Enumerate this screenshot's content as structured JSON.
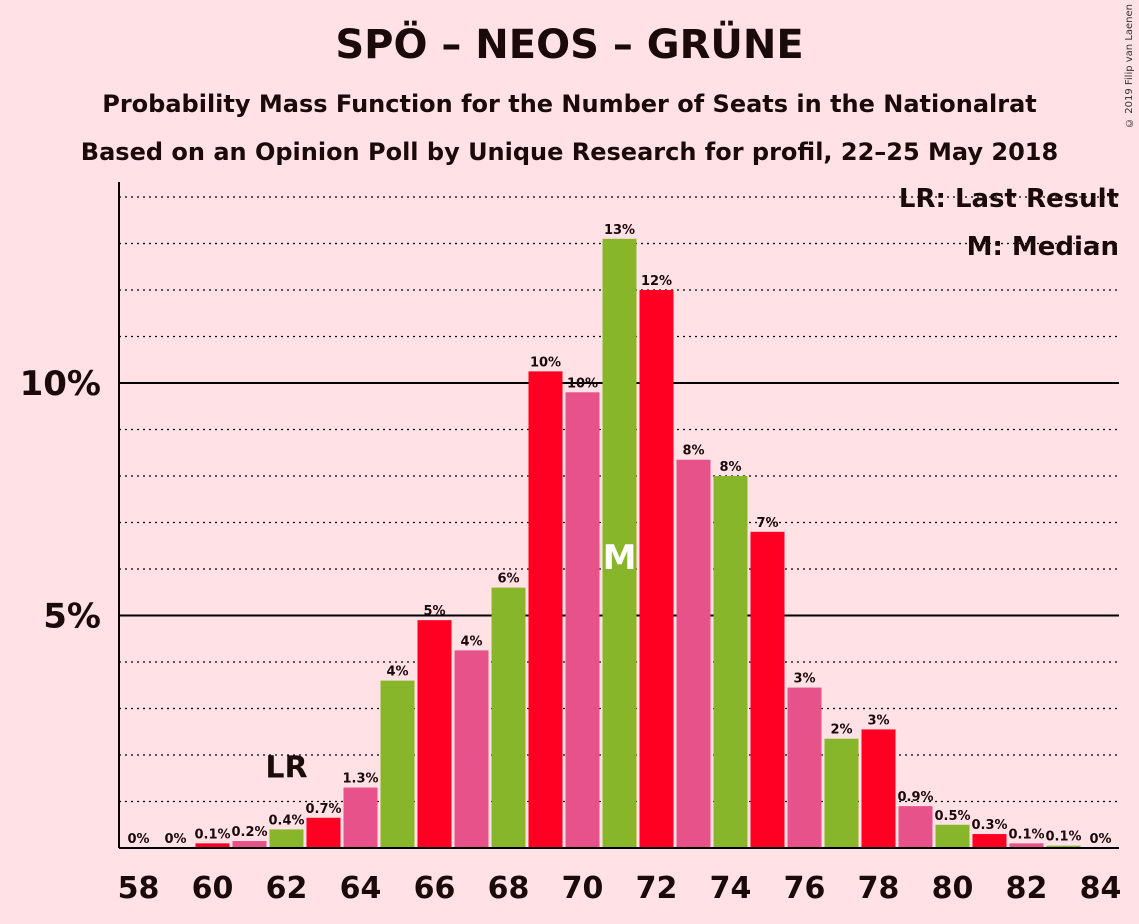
{
  "title": "SPÖ – NEOS – GRÜNE",
  "subtitle1": "Probability Mass Function for the Number of Seats in the Nationalrat",
  "subtitle2": "Based on an Opinion Poll by Unique Research for profil, 22–25 May 2018",
  "copyright": "© 2019 Filip van Laenen",
  "legend": {
    "last_result": "LR: Last Result",
    "median": "M: Median"
  },
  "colors": {
    "background": "#FFE1E6",
    "spo": "#FF0022",
    "neos": "#E8528A",
    "grune": "#88B62A"
  },
  "chart_data": {
    "type": "bar",
    "ylim": [
      0,
      14.3
    ],
    "yticks": [
      {
        "value": 5,
        "label": "5%"
      },
      {
        "value": 10,
        "label": "10%"
      }
    ],
    "x": [
      58,
      59,
      60,
      61,
      62,
      63,
      64,
      65,
      66,
      67,
      68,
      69,
      70,
      71,
      72,
      73,
      74,
      75,
      76,
      77,
      78,
      79,
      80,
      81,
      82,
      83,
      84
    ],
    "xtick_labels": [
      "58",
      "60",
      "62",
      "64",
      "66",
      "68",
      "70",
      "72",
      "74",
      "76",
      "78",
      "80",
      "82",
      "84"
    ],
    "values": [
      0,
      0,
      0.1,
      0.15,
      0.4,
      0.65,
      1.3,
      3.6,
      4.9,
      4.25,
      5.6,
      10.25,
      9.8,
      13.1,
      12.0,
      8.35,
      8.0,
      6.8,
      3.45,
      2.35,
      2.55,
      0.9,
      0.5,
      0.3,
      0.1,
      0.05,
      0
    ],
    "data_labels": [
      "0%",
      "0%",
      "0.1%",
      "0.2%",
      "0.4%",
      "0.7%",
      "1.3%",
      "4%",
      "5%",
      "4%",
      "6%",
      "10%",
      "10%",
      "13%",
      "12%",
      "8%",
      "8%",
      "7%",
      "3%",
      "2%",
      "3%",
      "0.9%",
      "0.5%",
      "0.3%",
      "0.1%",
      "0.1%",
      "0%"
    ],
    "bar_colors": [
      "#FF0022",
      "#E8528A",
      "#FF0022",
      "#E8528A",
      "#88B62A",
      "#FF0022",
      "#E8528A",
      "#88B62A",
      "#FF0022",
      "#E8528A",
      "#88B62A",
      "#FF0022",
      "#E8528A",
      "#88B62A",
      "#FF0022",
      "#E8528A",
      "#88B62A",
      "#FF0022",
      "#E8528A",
      "#88B62A",
      "#FF0022",
      "#E8528A",
      "#88B62A",
      "#FF0022",
      "#E8528A",
      "#88B62A",
      "#FF0022"
    ],
    "last_result": {
      "x": 62,
      "label": "LR"
    },
    "median": {
      "x": 71,
      "label": "M"
    }
  }
}
